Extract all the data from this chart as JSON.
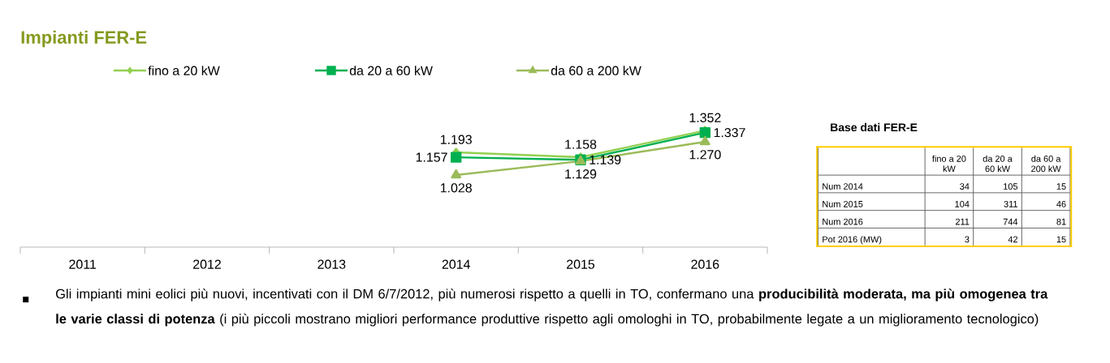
{
  "chart_data": [
    {
      "type": "line",
      "title": "Impianti FER-E",
      "categories": [
        "2011",
        "2012",
        "2013",
        "2014",
        "2015",
        "2016"
      ],
      "series": [
        {
          "name": "fino a 20 kW",
          "color": "#92d050",
          "marker": "diamond",
          "values": [
            null,
            null,
            null,
            1193,
            1158,
            1352
          ],
          "value_labels": [
            null,
            null,
            null,
            "1.193",
            "1.158",
            "1.352"
          ]
        },
        {
          "name": "da 20 a 60 kW",
          "color": "#00b050",
          "marker": "square",
          "values": [
            null,
            null,
            null,
            1157,
            1139,
            1337
          ],
          "value_labels": [
            null,
            null,
            null,
            "1.157",
            "1.139",
            "1.337"
          ]
        },
        {
          "name": "da 60 a 200 kW",
          "color": "#9bbb59",
          "marker": "triangle",
          "values": [
            null,
            null,
            null,
            1028,
            1129,
            1270
          ],
          "value_labels": [
            null,
            null,
            null,
            "1.028",
            "1.129",
            "1.270"
          ]
        }
      ],
      "tick_labels": "x",
      "legend": "top left",
      "annotations": [
        "Gli impianti mini eolici più nuovi, incentivati con il DM 6/7/2012,  più numerosi rispetto a quelli in TO, confermano una **producibilità moderata, ma più omogenea tra le varie classi di potenza** (i più piccoli mostrano migliori performance produttive rispetto agli omologhi in TO, probabilmente legate a un miglioramento tecnologico)"
      ]
    },
    {
      "type": "other",
      "title": "Base dati FER-E",
      "categories": [
        "fino a 20 kW",
        "da 20 a 60 kW",
        "da 60 a 200 kW"
      ],
      "data_labels": true,
      "series": [
        {
          "name": "Num 2014",
          "values": [
            34,
            105,
            15
          ]
        },
        {
          "name": "Num 2015",
          "values": [
            104,
            311,
            46
          ]
        },
        {
          "name": "Num 2016",
          "values": [
            211,
            744,
            81
          ]
        },
        {
          "name": "Pot 2016 (MW)",
          "values": [
            3,
            42,
            15
          ]
        }
      ]
    }
  ]
}
